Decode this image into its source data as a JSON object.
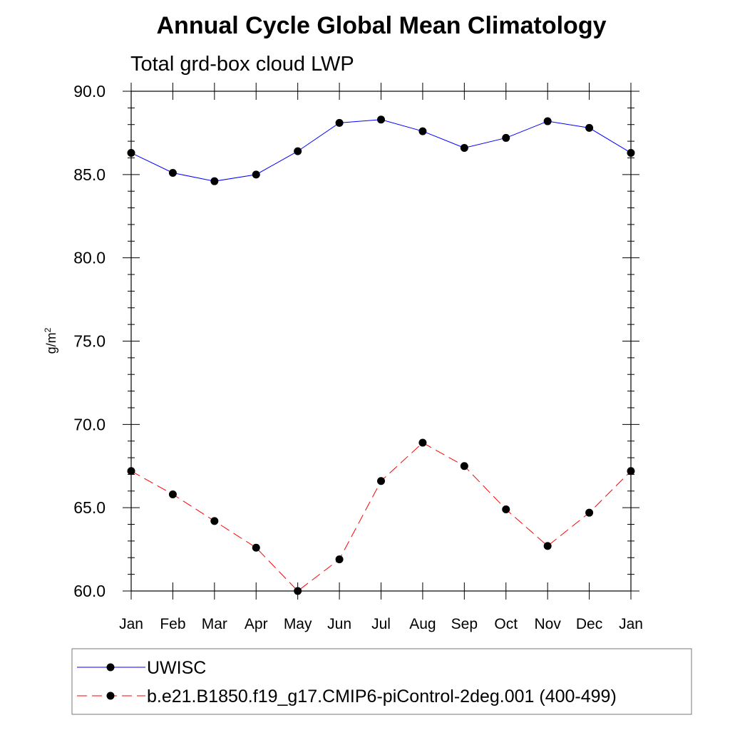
{
  "chart_data": {
    "type": "line",
    "title": "Annual Cycle Global Mean Climatology",
    "subtitle": "Total grd-box cloud LWP",
    "ylabel": "g/m",
    "ylabel_sup": "2",
    "xlabel": "",
    "ylim": [
      60,
      90
    ],
    "yticks": [
      "90.0",
      "85.0",
      "80.0",
      "75.0",
      "70.0",
      "65.0",
      "60.0"
    ],
    "ytick_values": [
      90,
      85,
      80,
      75,
      70,
      65,
      60
    ],
    "categories": [
      "Jan",
      "Feb",
      "Mar",
      "Apr",
      "May",
      "Jun",
      "Jul",
      "Aug",
      "Sep",
      "Oct",
      "Nov",
      "Dec",
      "Jan"
    ],
    "series": [
      {
        "name": "UWISC",
        "color": "#0000ff",
        "dash": "solid",
        "values": [
          86.3,
          85.1,
          84.6,
          85.0,
          86.4,
          88.1,
          88.3,
          87.6,
          86.6,
          87.2,
          88.2,
          87.8,
          86.3
        ]
      },
      {
        "name": "b.e21.B1850.f19_g17.CMIP6-piControl-2deg.001 (400-499)",
        "color": "#ff0000",
        "dash": "dashed",
        "values": [
          67.2,
          65.8,
          64.2,
          62.6,
          60.0,
          61.9,
          66.6,
          68.9,
          67.5,
          64.9,
          62.7,
          64.7,
          67.2
        ]
      }
    ],
    "legend": "bottom"
  }
}
